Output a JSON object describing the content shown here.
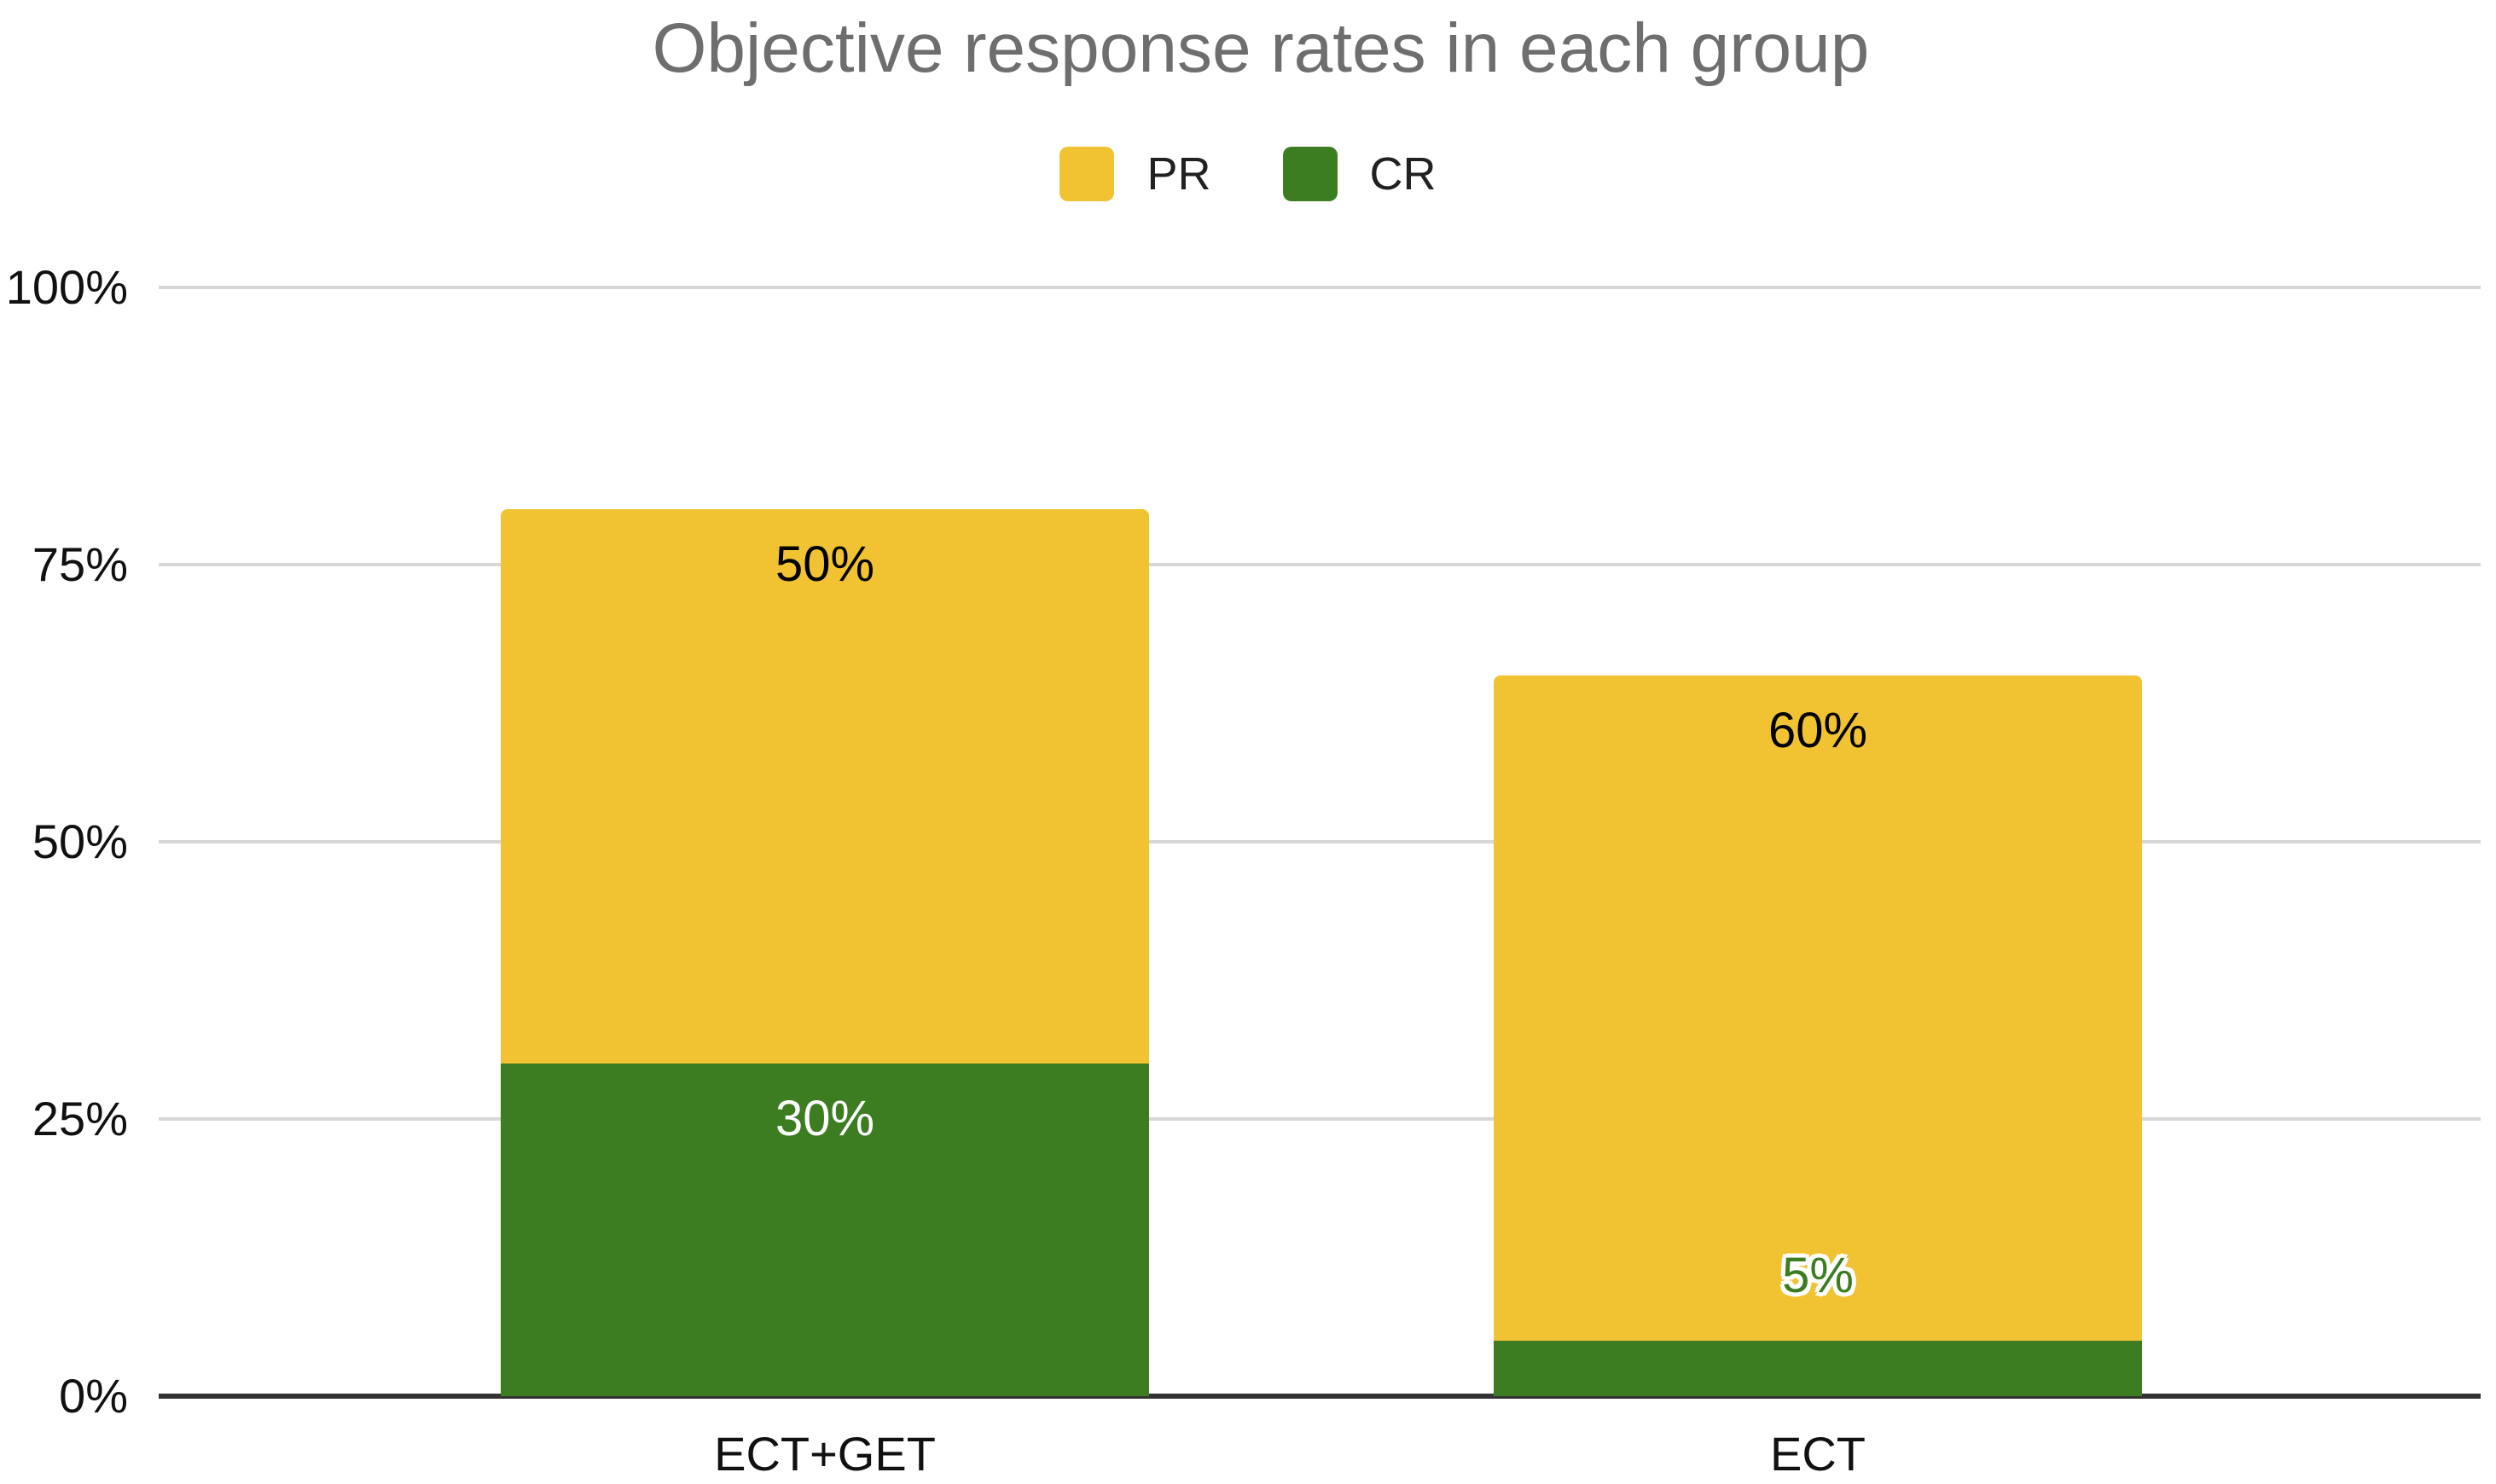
{
  "title": {
    "text": "Objective response rates in each group",
    "color": "#6e6e6e"
  },
  "legend": {
    "position": "top",
    "items": [
      {
        "label": "PR",
        "color": "#F1C232"
      },
      {
        "label": "CR",
        "color": "#3C7D21"
      }
    ]
  },
  "chart_data": {
    "type": "bar",
    "stacked": true,
    "title": "Objective response rates in each group",
    "categories": [
      "ECT+GET",
      "ECT"
    ],
    "series": [
      {
        "name": "CR",
        "color": "#3C7D21",
        "values": [
          30,
          5
        ]
      },
      {
        "name": "PR",
        "color": "#F1C232",
        "values": [
          50,
          60
        ]
      }
    ],
    "y_axis": {
      "ticks": [
        "0%",
        "25%",
        "50%",
        "75%",
        "100%"
      ],
      "min": 0,
      "max": 100,
      "unit": "%"
    },
    "xlabel": "",
    "ylabel": "",
    "grid": true,
    "legend_position": "top",
    "data_labels": [
      {
        "category": "ECT+GET",
        "series": "PR",
        "text": "50%",
        "color": "#000000",
        "halo": false,
        "position": "inside-top"
      },
      {
        "category": "ECT+GET",
        "series": "CR",
        "text": "30%",
        "color": "#ffffff",
        "halo": false,
        "position": "inside-top"
      },
      {
        "category": "ECT",
        "series": "PR",
        "text": "60%",
        "color": "#000000",
        "halo": false,
        "position": "inside-top"
      },
      {
        "category": "ECT",
        "series": "CR",
        "text": "5%",
        "color": "#3C7D21",
        "halo": true,
        "position": "above-segment"
      }
    ],
    "colors": {
      "grid": "#d7d7d7",
      "axis": "#333333",
      "background": "#ffffff"
    }
  }
}
